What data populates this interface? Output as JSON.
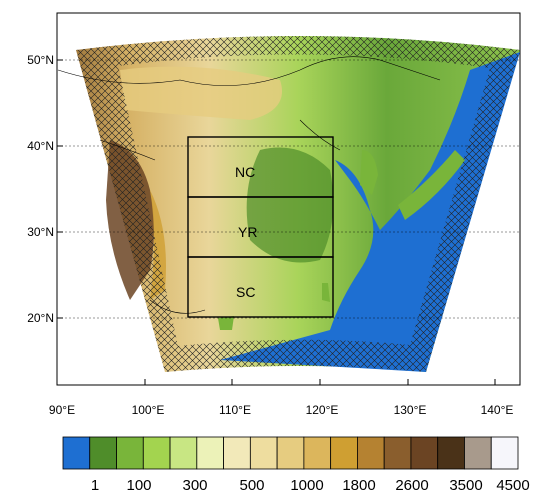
{
  "map": {
    "lat_ticks": [
      "50°N",
      "40°N",
      "30°N",
      "20°N"
    ],
    "lon_ticks": [
      "90°E",
      "100°E",
      "110°E",
      "120°E",
      "130°E",
      "140°E"
    ],
    "regions": [
      {
        "label": "NC",
        "lat_range": [
          34,
          41
        ],
        "lon_range": [
          105,
          122
        ]
      },
      {
        "label": "YR",
        "lat_range": [
          27,
          34
        ],
        "lon_range": [
          105,
          122
        ]
      },
      {
        "label": "SC",
        "lat_range": [
          20,
          27
        ],
        "lon_range": [
          105,
          122
        ]
      }
    ],
    "domain_fill": "terrain height shaded; ocean blue; boundary buffer hatched"
  },
  "colorbar": {
    "labels": [
      "1",
      "100",
      "300",
      "500",
      "1000",
      "1800",
      "2600",
      "3500",
      "4500"
    ],
    "colors": [
      "#1e6fd2",
      "#4f8d2a",
      "#79b53a",
      "#a3d44f",
      "#c8e683",
      "#ecf2b8",
      "#f2e9b9",
      "#eedd9f",
      "#e6cc80",
      "#dcb65c",
      "#cf9f32",
      "#b58231",
      "#8a5e2d",
      "#6b4423",
      "#4a3218",
      "#a89a8c",
      "#f6f6fb"
    ]
  }
}
